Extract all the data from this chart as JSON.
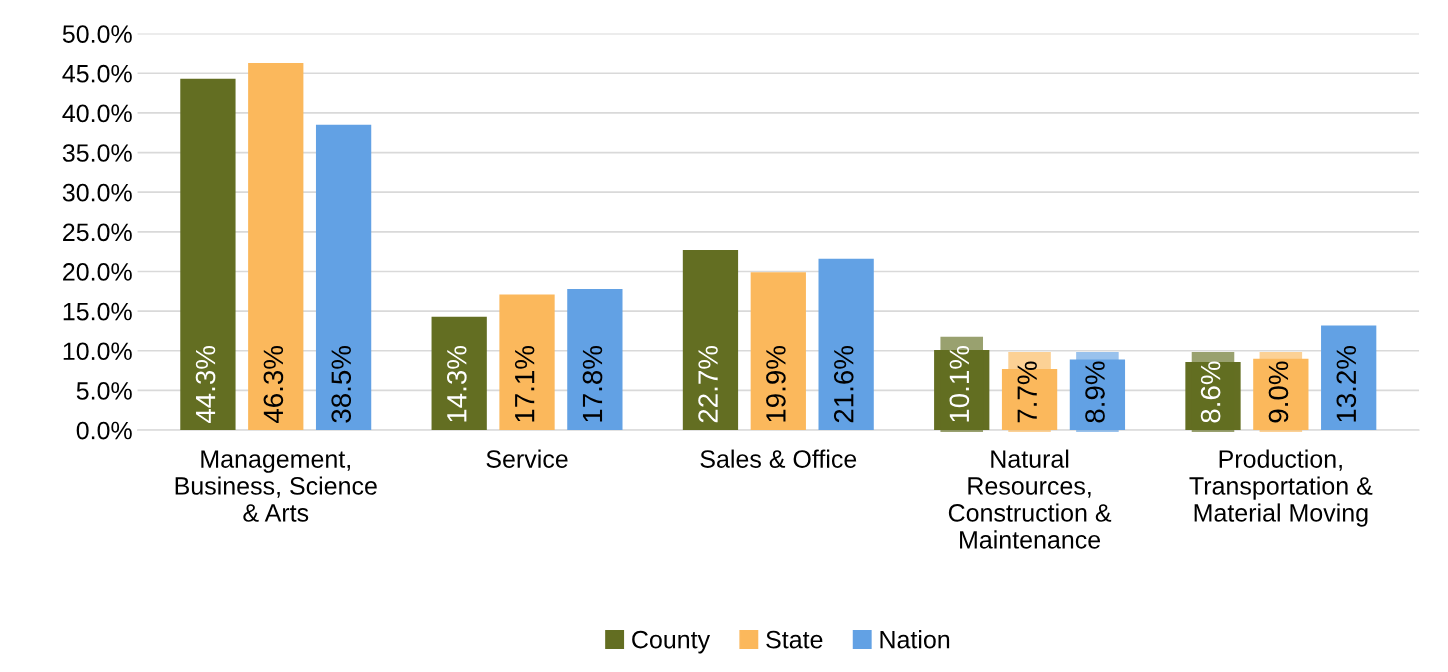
{
  "chart_data": {
    "type": "bar",
    "categories": [
      "Management,\nBusiness, Science\n& Arts",
      "Service",
      "Sales & Office",
      "Natural\nResources,\nConstruction &\nMaintenance",
      "Production,\nTransportation &\nMaterial Moving"
    ],
    "series": [
      {
        "name": "County",
        "color": "#636e22",
        "values": [
          44.3,
          14.3,
          22.7,
          10.1,
          8.6
        ]
      },
      {
        "name": "State",
        "color": "#fbb85c",
        "values": [
          46.3,
          17.1,
          19.9,
          7.7,
          9.0
        ]
      },
      {
        "name": "Nation",
        "color": "#62a1e4",
        "values": [
          38.5,
          17.8,
          21.6,
          8.9,
          13.2
        ]
      }
    ],
    "ylim": [
      0,
      50
    ],
    "yticks": [
      {
        "value": 0,
        "label": "0.0%"
      },
      {
        "value": 5,
        "label": "5.0%"
      },
      {
        "value": 10,
        "label": "10.0%"
      },
      {
        "value": 15,
        "label": "15.0%"
      },
      {
        "value": 20,
        "label": "20.0%"
      },
      {
        "value": 25,
        "label": "25.0%"
      },
      {
        "value": 30,
        "label": "30.0%"
      },
      {
        "value": 35,
        "label": "35.0%"
      },
      {
        "value": 40,
        "label": "40.0%"
      },
      {
        "value": 45,
        "label": "45.0%"
      },
      {
        "value": 50,
        "label": "50.0%"
      }
    ],
    "value_labels": [
      [
        "44.3%",
        "14.3%",
        "22.7%",
        "10.1%",
        "8.6%"
      ],
      [
        "46.3%",
        "17.1%",
        "19.9%",
        "7.7%",
        "9.0%"
      ],
      [
        "38.5%",
        "17.8%",
        "21.6%",
        "8.9%",
        "13.2%"
      ]
    ],
    "grid": "y",
    "legend": "bottom"
  }
}
